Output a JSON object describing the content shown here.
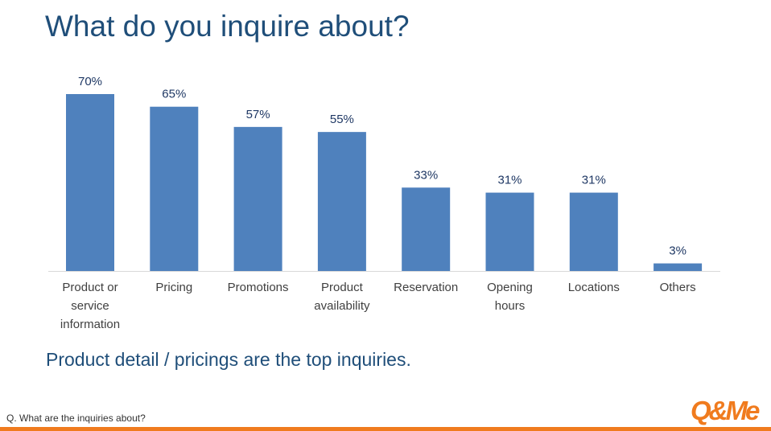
{
  "slide": {
    "title": "What do you inquire about?",
    "subtitle": "Product detail / pricings are the top inquiries.",
    "footnote": "Q. What are the inquiries about?",
    "logo_text": "Q&Me"
  },
  "colors": {
    "bar": "#4f81bd",
    "title": "#1f4e79",
    "label": "#404040",
    "value_label": "#1f3864",
    "axis": "#d9d9d9",
    "accent": "#f07b1e"
  },
  "chart_data": {
    "type": "bar",
    "categories": [
      "Product or service information",
      "Pricing",
      "Promotions",
      "Product availability",
      "Reservation",
      "Opening hours",
      "Locations",
      "Others"
    ],
    "values": [
      70,
      65,
      57,
      55,
      33,
      31,
      31,
      3
    ],
    "value_labels": [
      "70%",
      "65%",
      "57%",
      "55%",
      "33%",
      "31%",
      "31%",
      "3%"
    ],
    "unit": "%",
    "ylim": [
      0,
      70
    ],
    "grid": false,
    "legend": "none",
    "xlabel": "",
    "ylabel": ""
  }
}
